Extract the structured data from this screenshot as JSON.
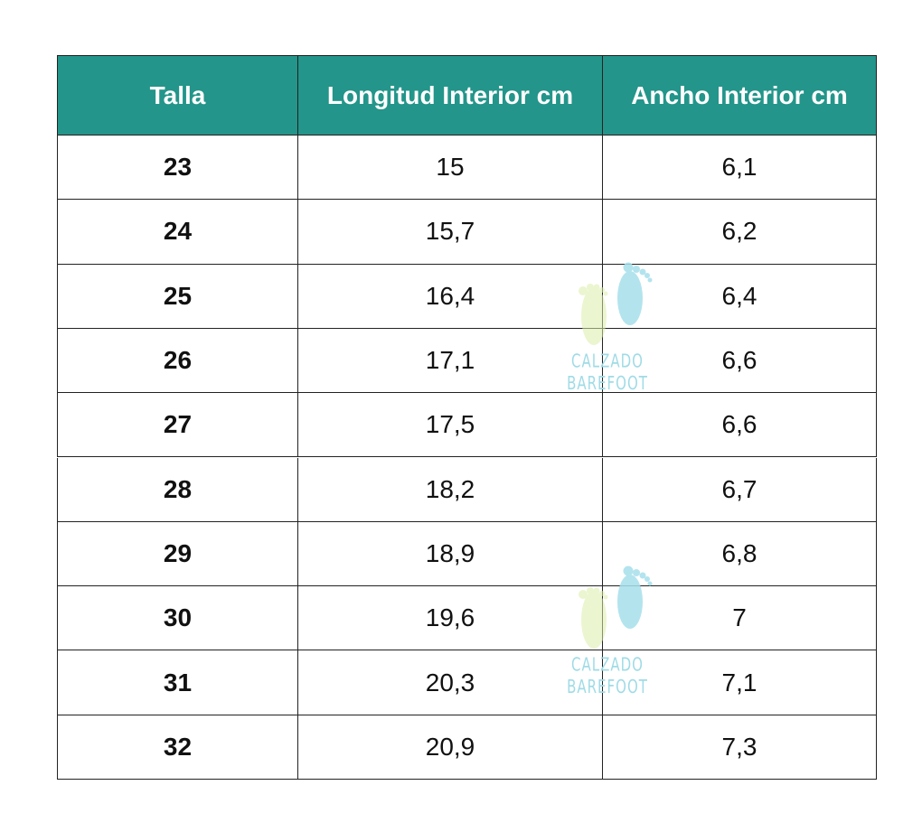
{
  "table": {
    "header": [
      "Talla",
      "Longitud Interior cm",
      "Ancho Interior cm"
    ],
    "rows": [
      [
        "23",
        "15",
        "6,1"
      ],
      [
        "24",
        "15,7",
        "6,2"
      ],
      [
        "25",
        "16,4",
        "6,4"
      ],
      [
        "26",
        "17,1",
        "6,6"
      ],
      [
        "27",
        "17,5",
        "6,6"
      ],
      [
        "28",
        "18,2",
        "6,7"
      ],
      [
        "29",
        "18,9",
        "6,8"
      ],
      [
        "30",
        "19,6",
        "7"
      ],
      [
        "31",
        "20,3",
        "7,1"
      ],
      [
        "32",
        "20,9",
        "7,3"
      ]
    ]
  },
  "watermarks": [
    "CALZADO BAREFOOT",
    "CALZADO BAREFOOT"
  ]
}
